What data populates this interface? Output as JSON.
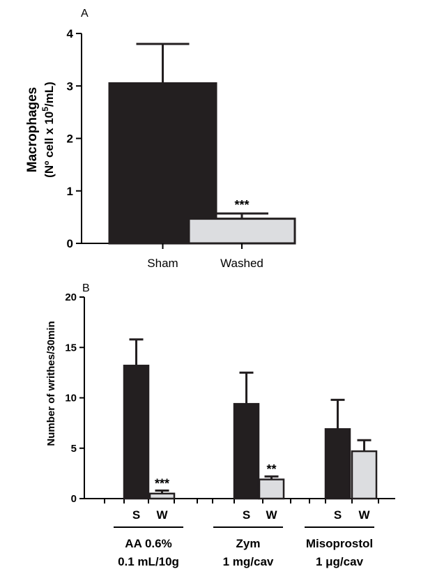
{
  "chart_data": [
    {
      "panel_label": "A",
      "type": "bar",
      "ylabel_line1": "Macrophages",
      "ylabel_line2": "(Nº cell x 10",
      "ylabel_sup": "5",
      "ylabel_line2_end": "/mL)",
      "ylim": [
        0,
        4
      ],
      "yticks": [
        "0",
        "1",
        "2",
        "3",
        "4"
      ],
      "categories": [
        "Sham",
        "Washed"
      ],
      "values": [
        3.05,
        0.47
      ],
      "errors": [
        0.75,
        0.1
      ],
      "significance": [
        "",
        "***"
      ],
      "colors": [
        "#231f20",
        "#dcdde0"
      ]
    },
    {
      "panel_label": "B",
      "type": "bar",
      "ylabel": "Number of writhes/30min",
      "ylim": [
        0,
        20
      ],
      "yticks": [
        "0",
        "5",
        "10",
        "15",
        "20"
      ],
      "groups": [
        {
          "line1": "AA 0.6%",
          "line2": "0.1 mL/10g"
        },
        {
          "line1": "Zym",
          "line2": "1 mg/cav"
        },
        {
          "line1": "Misoprostol",
          "line2": "1 μg/cav"
        }
      ],
      "bar_labels": [
        "S",
        "W"
      ],
      "series": [
        {
          "values": [
            13.2,
            9.4,
            6.9
          ],
          "errors": [
            2.6,
            3.1,
            2.9
          ],
          "significance": [
            "",
            "",
            ""
          ]
        },
        {
          "values": [
            0.5,
            1.9,
            4.7
          ],
          "errors": [
            0.3,
            0.3,
            1.1
          ],
          "significance": [
            "***",
            "**",
            ""
          ]
        }
      ],
      "colors": [
        "#231f20",
        "#dcdde0"
      ]
    }
  ]
}
